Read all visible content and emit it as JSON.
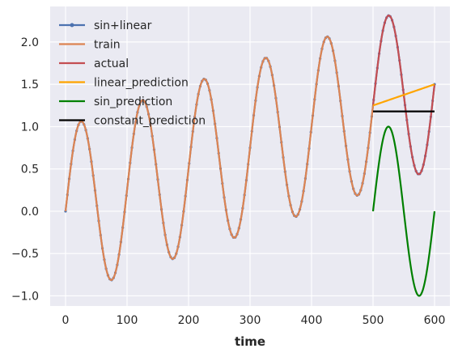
{
  "chart_data": {
    "type": "line",
    "title": "",
    "xlabel": "time",
    "ylabel": "",
    "xlim": [
      -25,
      625
    ],
    "ylim": [
      -1.12,
      2.42
    ],
    "x_ticks": [
      0,
      100,
      200,
      300,
      400,
      500,
      600
    ],
    "x_tick_labels": [
      "0",
      "100",
      "200",
      "300",
      "400",
      "500",
      "600"
    ],
    "y_ticks": [
      -1.0,
      -0.5,
      0.0,
      0.5,
      1.0,
      1.5,
      2.0
    ],
    "y_tick_labels": [
      "−1.0",
      "−0.5",
      "0.0",
      "0.5",
      "1.0",
      "1.5",
      "2.0"
    ],
    "grid": true,
    "legend_position": "top-left",
    "series": [
      {
        "name": "sin+linear",
        "color": "#4c72b0",
        "marker": "dot",
        "x_range": [
          0,
          600
        ],
        "formula": "sin(2*pi*t/100) + 0.0025*t",
        "sample_points": [
          [
            0,
            0.0
          ],
          [
            25,
            1.06
          ],
          [
            75,
            -0.81
          ],
          [
            125,
            1.31
          ],
          [
            175,
            -0.56
          ],
          [
            225,
            1.56
          ],
          [
            275,
            -0.31
          ],
          [
            325,
            1.81
          ],
          [
            375,
            -0.06
          ],
          [
            425,
            2.06
          ],
          [
            475,
            0.19
          ],
          [
            525,
            2.31
          ],
          [
            575,
            0.44
          ],
          [
            600,
            1.5
          ]
        ]
      },
      {
        "name": "train",
        "color": "#dd8452",
        "x_range": [
          0,
          500
        ],
        "sample_points": [
          [
            0,
            0.0
          ],
          [
            25,
            1.06
          ],
          [
            75,
            -0.81
          ],
          [
            125,
            1.31
          ],
          [
            175,
            -0.56
          ],
          [
            225,
            1.56
          ],
          [
            275,
            -0.31
          ],
          [
            325,
            1.81
          ],
          [
            375,
            -0.06
          ],
          [
            425,
            2.06
          ],
          [
            475,
            0.19
          ],
          [
            500,
            1.25
          ]
        ]
      },
      {
        "name": "actual",
        "color": "#c44e52",
        "x_range": [
          500,
          600
        ],
        "sample_points": [
          [
            500,
            1.25
          ],
          [
            525,
            2.31
          ],
          [
            550,
            1.38
          ],
          [
            575,
            0.44
          ],
          [
            600,
            1.5
          ]
        ]
      },
      {
        "name": "linear_prediction",
        "color": "#ffa500",
        "x_range": [
          500,
          600
        ],
        "sample_points": [
          [
            500,
            1.25
          ],
          [
            600,
            1.5
          ]
        ]
      },
      {
        "name": "sin_prediction",
        "color": "#008000",
        "x_range": [
          500,
          600
        ],
        "sample_points": [
          [
            500,
            0.0
          ],
          [
            525,
            1.0
          ],
          [
            550,
            0.0
          ],
          [
            575,
            -1.0
          ],
          [
            600,
            0.0
          ]
        ]
      },
      {
        "name": "constant_prediction",
        "color": "#000000",
        "x_range": [
          500,
          600
        ],
        "sample_points": [
          [
            500,
            1.18
          ],
          [
            600,
            1.18
          ]
        ]
      }
    ]
  }
}
